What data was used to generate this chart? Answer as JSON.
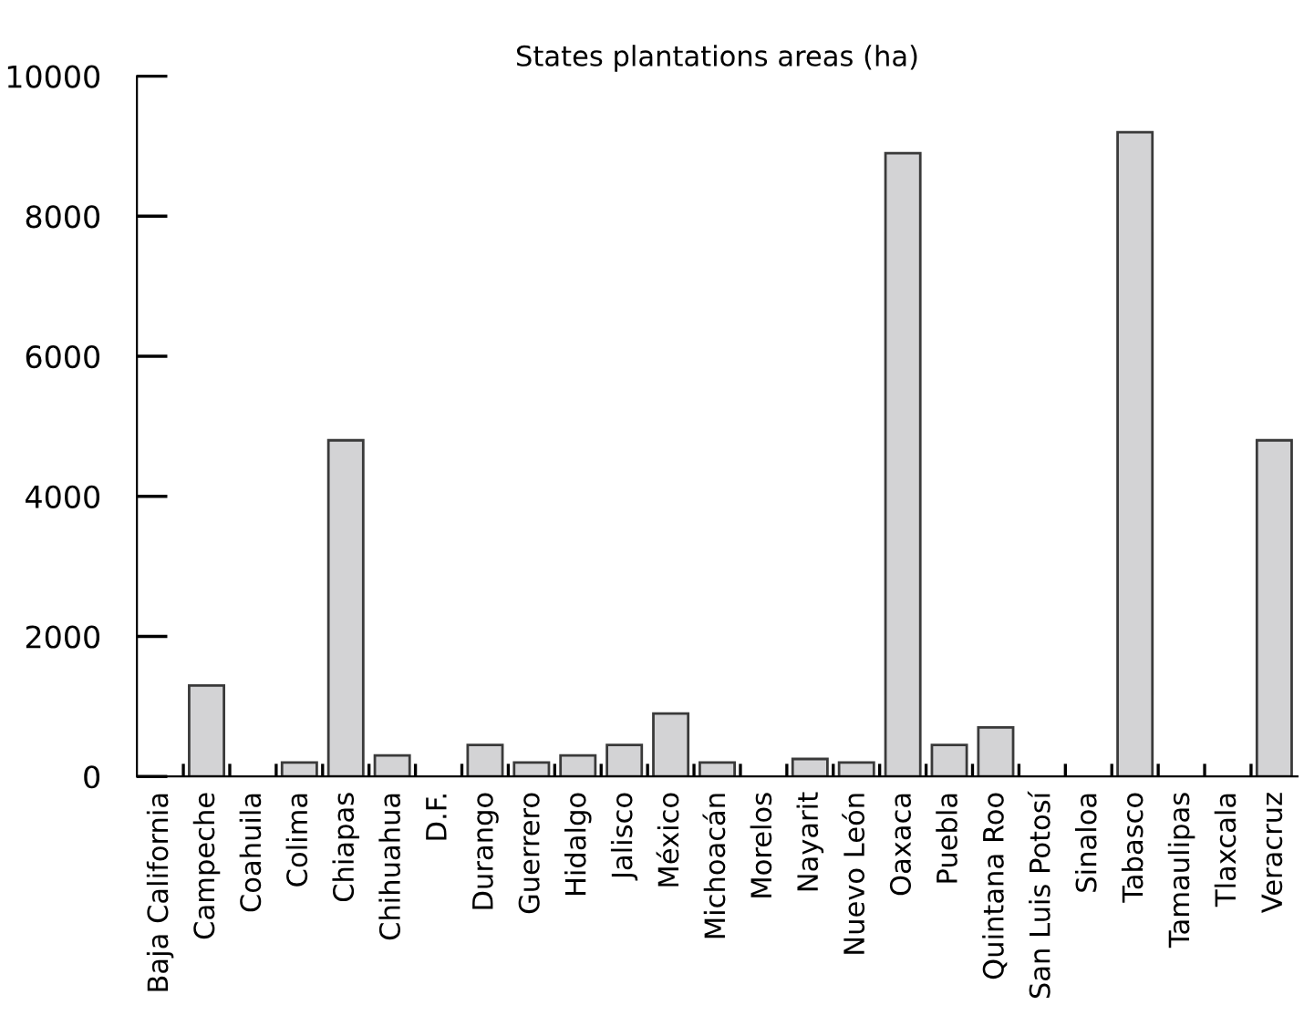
{
  "chart_data": {
    "type": "bar",
    "title": "States plantations areas (ha)",
    "categories": [
      "Baja California",
      "Campeche",
      "Coahuila",
      "Colima",
      "Chiapas",
      "Chihuahua",
      "D.F.",
      "Durango",
      "Guerrero",
      "Hidalgo",
      "Jalisco",
      "México",
      "Michoacán",
      "Morelos",
      "Nayarit",
      "Nuevo León",
      "Oaxaca",
      "Puebla",
      "Quintana Roo",
      "San Luis Potosí",
      "Sinaloa",
      "Tabasco",
      "Tamaulipas",
      "Tlaxcala",
      "Veracruz"
    ],
    "values": [
      0,
      1300,
      0,
      200,
      4800,
      300,
      0,
      450,
      200,
      300,
      450,
      900,
      200,
      0,
      250,
      200,
      8900,
      450,
      700,
      0,
      0,
      9200,
      0,
      0,
      4800
    ],
    "color": "#d3d3d5",
    "ylim": [
      0,
      10000
    ],
    "yticks": [
      0,
      2000,
      4000,
      6000,
      8000,
      10000
    ],
    "grid": false,
    "legend": false
  }
}
